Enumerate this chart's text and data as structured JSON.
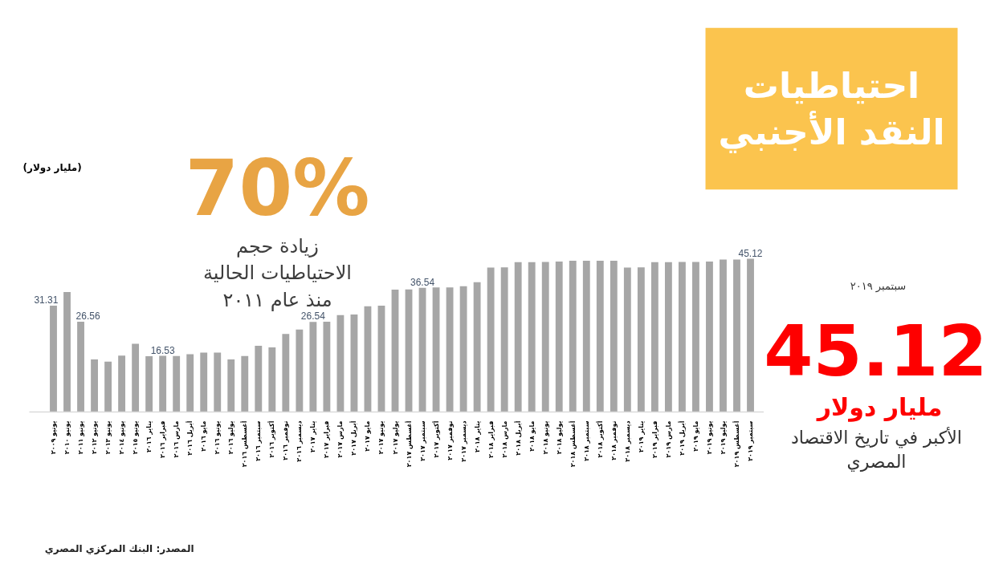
{
  "chart_data": {
    "type": "bar",
    "title": "احتياطيات النقد الأجنبي",
    "categories": [
      "يونيو ٢٠٠٩",
      "يونيو ٢٠١٠",
      "يونيو ٢٠١١",
      "يونيو ٢٠١٢",
      "يونيو ٢٠١٣",
      "يونيو ٢٠١٤",
      "يونيو ٢٠١٥",
      "يناير ٢٠١٦",
      "فبراير ٢٠١٦",
      "مارس ٢٠١٦",
      "أبريل ٢٠١٦",
      "مايو ٢٠١٦",
      "يونيو ٢٠١٦",
      "يوليو ٢٠١٦",
      "أغسطس ٢٠١٦",
      "سبتمبر ٢٠١٦",
      "أكتوبر ٢٠١٦",
      "نوفمبر ٢٠١٦",
      "ديسمبر ٢٠١٦",
      "يناير ٢٠١٧",
      "فبراير ٢٠١٧",
      "مارس ٢٠١٧",
      "أبريل ٢٠١٧",
      "مايو ٢٠١٧",
      "يونيو ٢٠١٧",
      "يوليو ٢٠١٧",
      "أغسطس ٢٠١٧",
      "سبتمبر ٢٠١٧",
      "أكتوبر ٢٠١٧",
      "نوفمبر ٢٠١٧",
      "ديسمبر ٢٠١٧",
      "يناير ٢٠١٨",
      "فبراير ٢٠١٨",
      "مارس ٢٠١٨",
      "أبريل ٢٠١٨",
      "مايو ٢٠١٨",
      "يونيو ٢٠١٨",
      "يوليو ٢٠١٨",
      "أغسطس ٢٠١٨",
      "سبتمبر ٢٠١٨",
      "أكتوبر ٢٠١٨",
      "نوفمبر ٢٠١٨",
      "ديسمبر ٢٠١٨",
      "يناير ٢٠١٩",
      "فبراير ٢٠١٩",
      "مارس ٢٠١٩",
      "أبريل ٢٠١٩",
      "مايو ٢٠١٩",
      "يونيو ٢٠١٩",
      "يوليو ٢٠١٩",
      "أغسطس ٢٠١٩",
      "سبتمبر ٢٠١٩"
    ],
    "values": [
      31.31,
      35.3,
      26.56,
      15.5,
      14.8,
      16.6,
      20.1,
      16.4,
      16.53,
      16.5,
      17.0,
      17.5,
      17.5,
      15.5,
      16.5,
      19.5,
      19.0,
      23.0,
      24.3,
      26.54,
      26.6,
      28.5,
      28.7,
      31.1,
      31.3,
      36.0,
      36.1,
      36.54,
      36.7,
      36.7,
      37.0,
      38.2,
      42.5,
      42.6,
      44.1,
      44.1,
      44.2,
      44.3,
      44.5,
      44.5,
      44.5,
      44.5,
      42.5,
      42.6,
      44.1,
      44.1,
      44.2,
      44.2,
      44.3,
      44.9,
      44.9,
      45.12
    ],
    "value_labels": [
      "31.31",
      null,
      "26.56",
      null,
      null,
      null,
      null,
      null,
      "16.53",
      null,
      null,
      null,
      null,
      null,
      null,
      null,
      null,
      null,
      null,
      "26.54",
      null,
      null,
      null,
      null,
      null,
      null,
      null,
      "36.54",
      null,
      null,
      null,
      null,
      null,
      null,
      null,
      null,
      null,
      null,
      null,
      null,
      null,
      null,
      null,
      null,
      null,
      null,
      null,
      null,
      null,
      null,
      null,
      "45.12"
    ],
    "color": "#a6a6a6",
    "tick_labels": "x",
    "annotations": [
      "(مليار دولار)",
      "70%",
      "زيادة حجم الاحتياطيات الحالية منذ عام ٢٠١١",
      "سبتمبر ٢٠١٩",
      "45.12",
      "مليار دولار",
      "الأكبر في تاريخ الاقتصاد المصري",
      "المصدر: البنك المركزي المصري"
    ]
  }
}
